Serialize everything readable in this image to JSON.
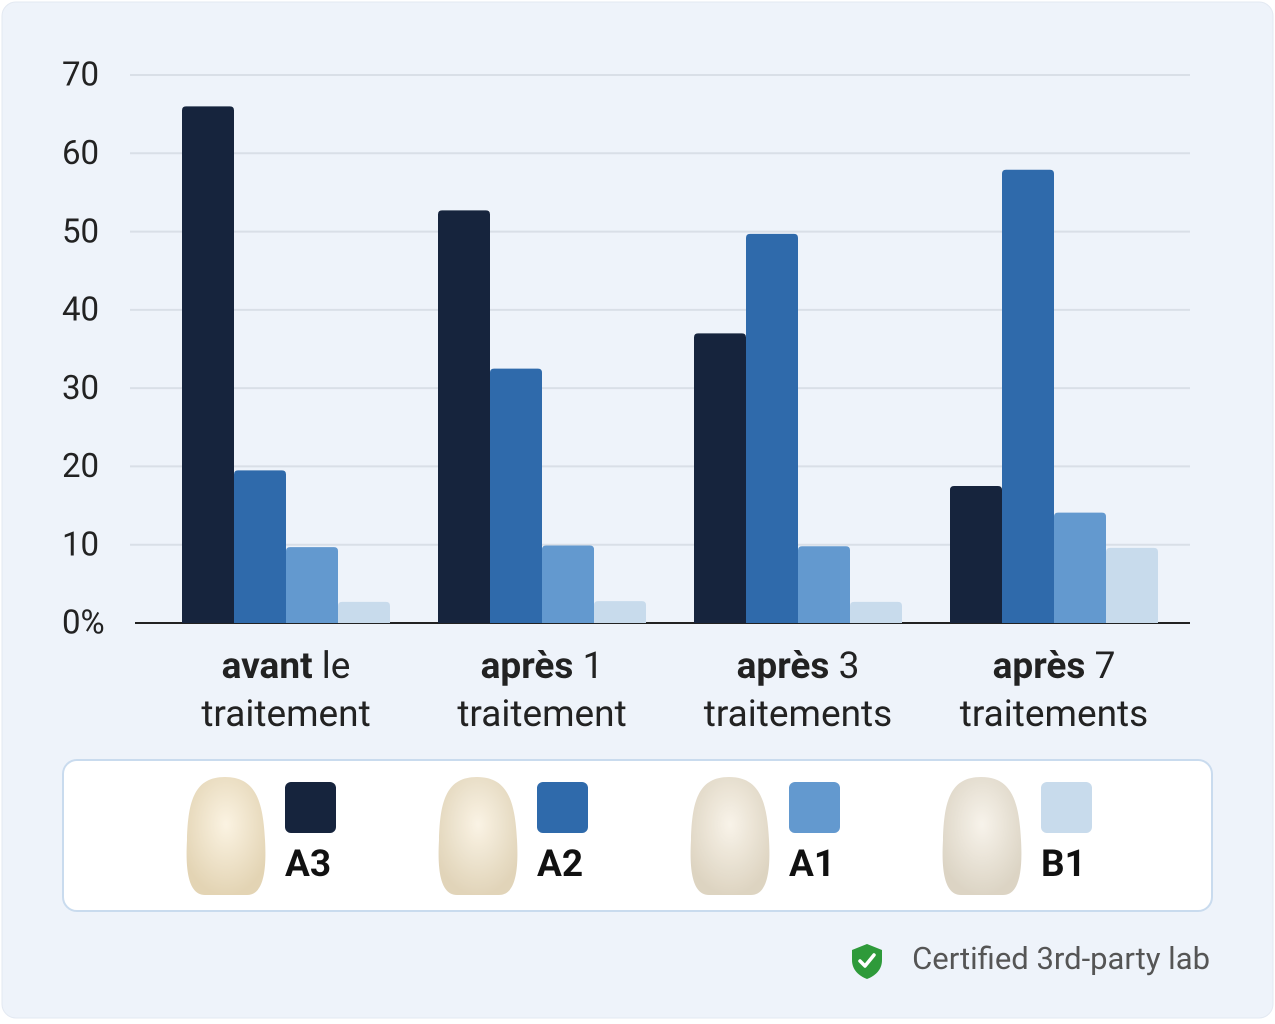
{
  "chart_data": {
    "type": "bar",
    "categories": [
      "avant le traitement",
      "après 1 traitement",
      "après 3 traitements",
      "après 7 traitements"
    ],
    "series": [
      {
        "name": "A3",
        "color": "#16243d",
        "values": [
          66,
          52.7,
          37,
          17.5
        ]
      },
      {
        "name": "A2",
        "color": "#2f6aab",
        "values": [
          19.5,
          32.5,
          49.7,
          57.9
        ]
      },
      {
        "name": "A1",
        "color": "#6399cf",
        "values": [
          9.7,
          9.9,
          9.8,
          14.1
        ]
      },
      {
        "name": "B1",
        "color": "#c8dbec",
        "values": [
          2.7,
          2.8,
          2.7,
          9.6
        ]
      }
    ],
    "ylim": [
      0,
      70
    ],
    "yticks": [
      {
        "value": 0,
        "label": "0%"
      },
      10,
      20,
      30,
      40,
      50,
      60,
      70
    ],
    "grid": true
  },
  "badge": "Certified 3rd-party lab"
}
